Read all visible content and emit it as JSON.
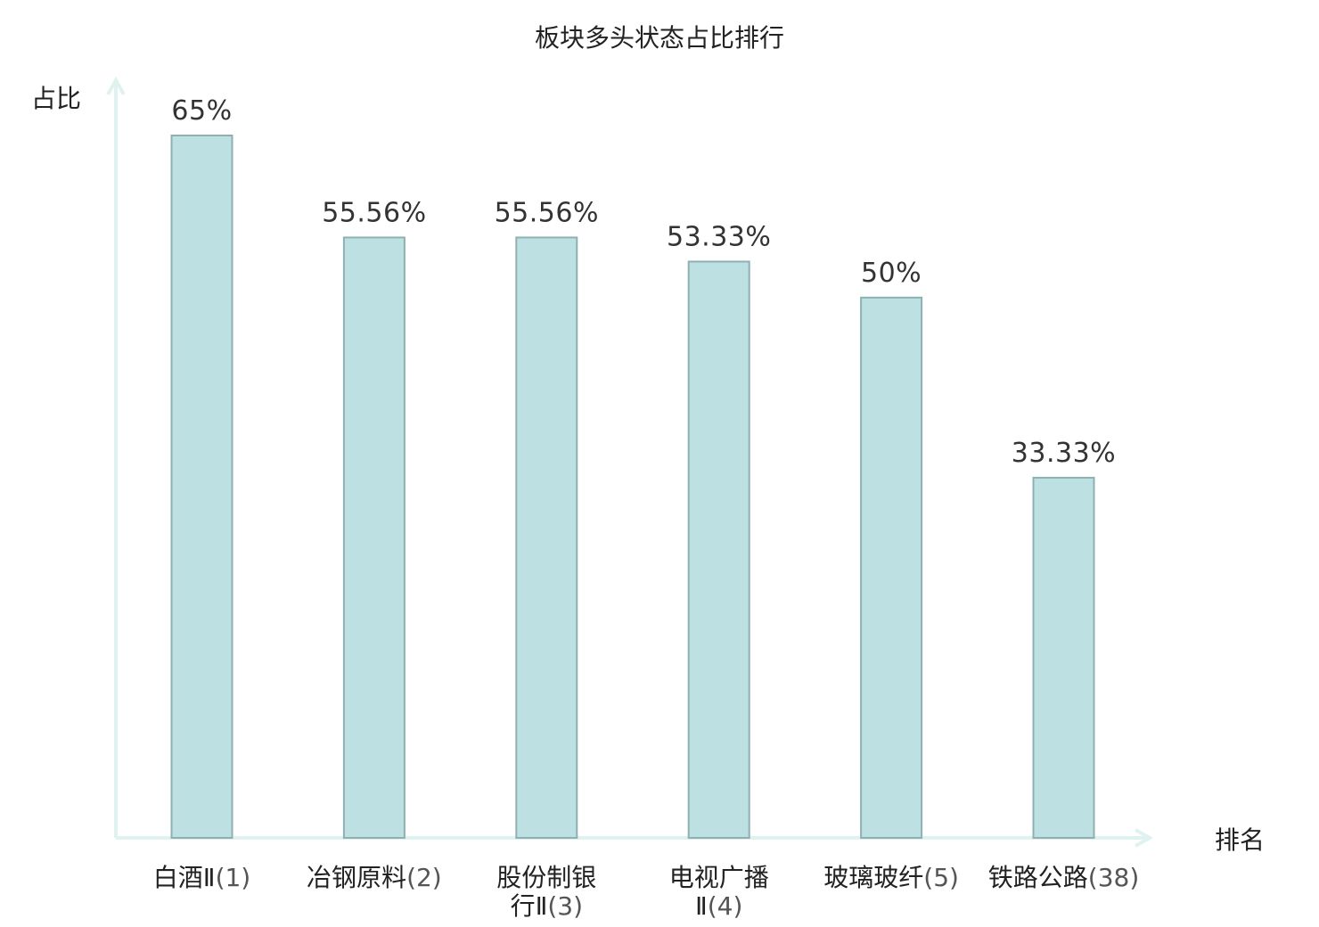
{
  "chart_data": {
    "type": "bar",
    "title": "板块多头状态占比排行",
    "ylabel": "占比",
    "xlabel": "排名",
    "ylim": [
      0,
      70
    ],
    "grid": false,
    "bar_color": "#bde0e3",
    "bar_border_color": "#8fb0b3",
    "axis_color": "#e0f2ef",
    "highlight_color": "#e02020",
    "categories": [
      {
        "name_lines": [
          "白酒Ⅱ"
        ],
        "rank": "(1)",
        "highlight": false
      },
      {
        "name_lines": [
          "冶钢原料"
        ],
        "rank": "(2)",
        "highlight": false
      },
      {
        "name_lines": [
          "股份制银",
          "行Ⅱ"
        ],
        "rank": "(3)",
        "highlight": false
      },
      {
        "name_lines": [
          "电视广播",
          "Ⅱ"
        ],
        "rank": "(4)",
        "highlight": false
      },
      {
        "name_lines": [
          "玻璃玻纤"
        ],
        "rank": "(5)",
        "highlight": false
      },
      {
        "name_lines": [
          "铁路公路"
        ],
        "rank": "(38)",
        "highlight": true
      }
    ],
    "values": [
      65,
      55.56,
      55.56,
      53.33,
      50,
      33.33
    ],
    "value_labels": [
      "65%",
      "55.56%",
      "55.56%",
      "53.33%",
      "50%",
      "33.33%"
    ]
  }
}
